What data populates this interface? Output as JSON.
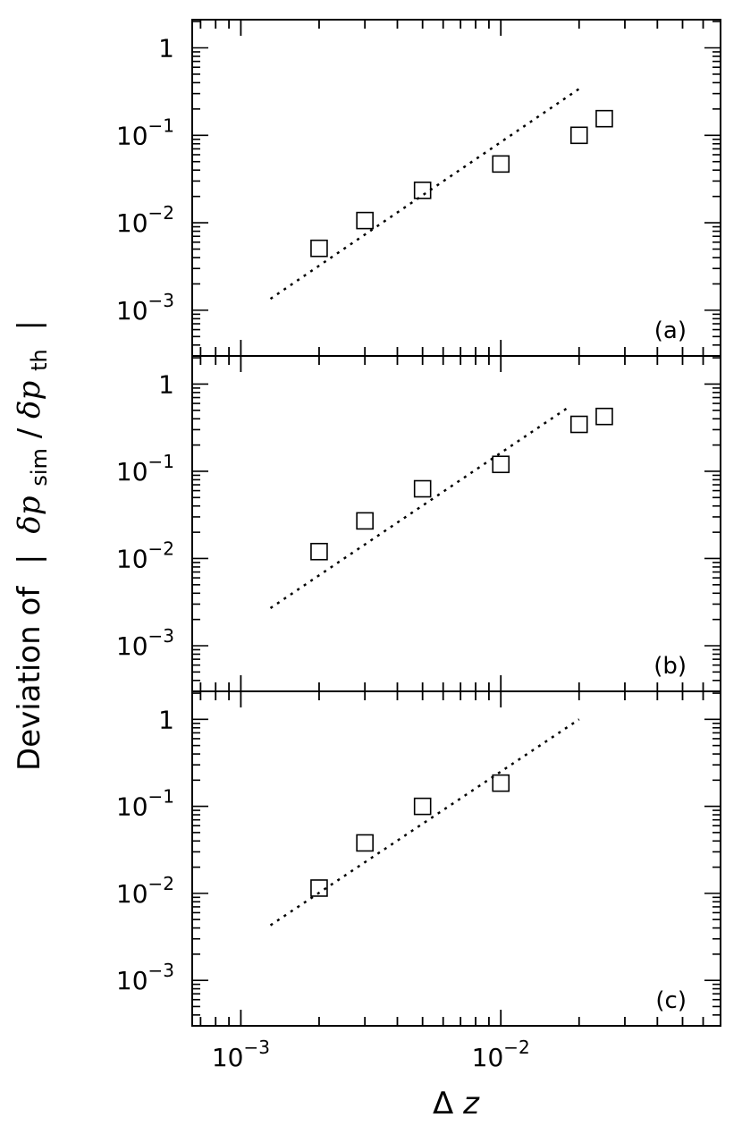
{
  "chart_data": {
    "type": "scatter",
    "xlabel_symbol": "Δ",
    "xlabel_var": "z",
    "ylabel_prefix": "Deviation of",
    "ylabel_sym1": "δp",
    "ylabel_sub1": "sim",
    "ylabel_sym2": "δp",
    "ylabel_sub2": "th",
    "xscale": "log",
    "yscale": "log",
    "xlim": [
      0.00065,
      0.07
    ],
    "ylim": [
      0.0003,
      2.1
    ],
    "x_ticks": [
      {
        "value": 0.001,
        "base": "10",
        "exp": "−3"
      },
      {
        "value": 0.01,
        "base": "10",
        "exp": "−2"
      }
    ],
    "y_ticks": [
      {
        "value": 1,
        "base": "1",
        "exp": ""
      },
      {
        "value": 0.1,
        "base": "10",
        "exp": "−1"
      },
      {
        "value": 0.01,
        "base": "10",
        "exp": "−2"
      },
      {
        "value": 0.001,
        "base": "10",
        "exp": "−3"
      }
    ],
    "panels": [
      {
        "label": "(a)",
        "points": [
          [
            0.002,
            0.0051
          ],
          [
            0.003,
            0.0106
          ],
          [
            0.005,
            0.0235
          ],
          [
            0.01,
            0.047
          ],
          [
            0.02,
            0.1
          ],
          [
            0.025,
            0.155
          ]
        ],
        "fit_line": [
          [
            0.0013,
            0.00135
          ],
          [
            0.02,
            0.34
          ]
        ]
      },
      {
        "label": "(b)",
        "points": [
          [
            0.002,
            0.012
          ],
          [
            0.003,
            0.027
          ],
          [
            0.005,
            0.063
          ],
          [
            0.01,
            0.12
          ],
          [
            0.02,
            0.345
          ],
          [
            0.025,
            0.425
          ]
        ],
        "fit_line": [
          [
            0.0013,
            0.0027
          ],
          [
            0.018,
            0.53
          ]
        ]
      },
      {
        "label": "(c)",
        "points": [
          [
            0.002,
            0.0115
          ],
          [
            0.003,
            0.038
          ],
          [
            0.005,
            0.1
          ],
          [
            0.01,
            0.185
          ]
        ],
        "fit_line": [
          [
            0.0013,
            0.0043
          ],
          [
            0.02,
            1.0
          ]
        ]
      }
    ]
  }
}
